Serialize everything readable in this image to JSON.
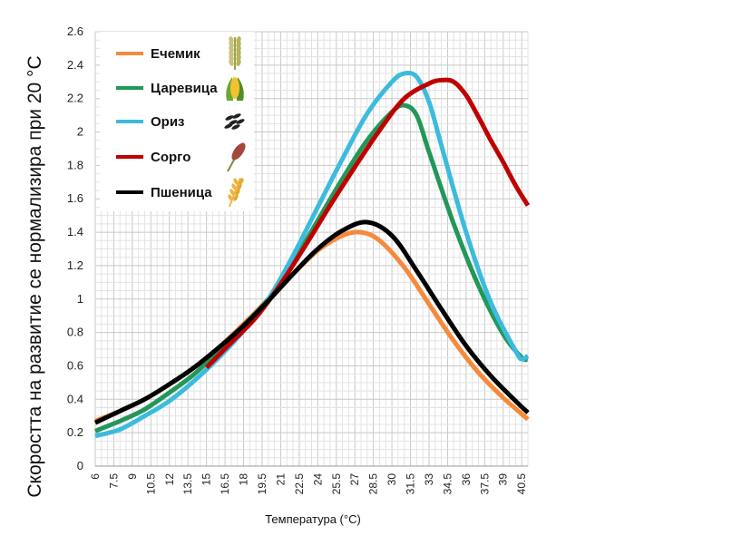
{
  "chart_data": {
    "type": "line",
    "xlabel": "Температура (°C)",
    "ylabel": "Скоростта на развитие се нормализира при 20 °C",
    "xlim": [
      6,
      41
    ],
    "ylim": [
      0,
      2.6
    ],
    "x_ticks": [
      "6",
      "7.5",
      "9",
      "10.5",
      "12",
      "13.5",
      "15",
      "16.5",
      "18",
      "19.5",
      "21",
      "22.5",
      "24",
      "25.5",
      "27",
      "28.5",
      "30",
      "31.5",
      "33",
      "34.5",
      "36",
      "37.5",
      "39",
      "40.5"
    ],
    "y_ticks": [
      "0",
      "0.2",
      "0.4",
      "0.6",
      "0.8",
      "1",
      "1.2",
      "1.4",
      "1.6",
      "1.8",
      "2",
      "2.2",
      "2.4",
      "2.6"
    ],
    "grid": true,
    "legend_position": "top-left",
    "series": [
      {
        "name": "Ечемик",
        "color": "#F58A3C",
        "icon": "barley-icon",
        "points": [
          [
            6,
            0.27
          ],
          [
            8,
            0.33
          ],
          [
            10,
            0.4
          ],
          [
            12,
            0.49
          ],
          [
            14,
            0.59
          ],
          [
            16,
            0.71
          ],
          [
            18,
            0.85
          ],
          [
            20,
            1.0
          ],
          [
            22,
            1.15
          ],
          [
            24,
            1.29
          ],
          [
            26,
            1.38
          ],
          [
            27.5,
            1.4
          ],
          [
            29,
            1.35
          ],
          [
            31,
            1.19
          ],
          [
            33,
            0.97
          ],
          [
            35,
            0.75
          ],
          [
            37,
            0.56
          ],
          [
            39,
            0.41
          ],
          [
            41,
            0.28
          ]
        ]
      },
      {
        "name": "Царевица",
        "color": "#23975A",
        "icon": "corn-icon",
        "points": [
          [
            6,
            0.21
          ],
          [
            8,
            0.27
          ],
          [
            10,
            0.34
          ],
          [
            12,
            0.44
          ],
          [
            14,
            0.55
          ],
          [
            16,
            0.69
          ],
          [
            18,
            0.84
          ],
          [
            20,
            1.0
          ],
          [
            22,
            1.22
          ],
          [
            24,
            1.47
          ],
          [
            26,
            1.72
          ],
          [
            28,
            1.95
          ],
          [
            30,
            2.12
          ],
          [
            31,
            2.16
          ],
          [
            32,
            2.1
          ],
          [
            33,
            1.88
          ],
          [
            35,
            1.45
          ],
          [
            37,
            1.08
          ],
          [
            39,
            0.79
          ],
          [
            40.5,
            0.65
          ],
          [
            41,
            0.64
          ]
        ]
      },
      {
        "name": "Ориз",
        "color": "#3CBBDE",
        "icon": "rice-icon",
        "points": [
          [
            6,
            0.18
          ],
          [
            8,
            0.22
          ],
          [
            10,
            0.3
          ],
          [
            12,
            0.39
          ],
          [
            14,
            0.51
          ],
          [
            16,
            0.65
          ],
          [
            18,
            0.81
          ],
          [
            20,
            1.0
          ],
          [
            22,
            1.26
          ],
          [
            24,
            1.55
          ],
          [
            26,
            1.84
          ],
          [
            28,
            2.11
          ],
          [
            30,
            2.3
          ],
          [
            31,
            2.35
          ],
          [
            32,
            2.33
          ],
          [
            33,
            2.18
          ],
          [
            34,
            1.92
          ],
          [
            36,
            1.4
          ],
          [
            38,
            0.98
          ],
          [
            40,
            0.69
          ],
          [
            40.5,
            0.64
          ],
          [
            41,
            0.66
          ]
        ]
      },
      {
        "name": "Сорго",
        "color": "#C00000",
        "icon": "sorghum-icon",
        "points": [
          [
            15,
            0.59
          ],
          [
            17,
            0.74
          ],
          [
            19,
            0.89
          ],
          [
            21,
            1.09
          ],
          [
            23,
            1.32
          ],
          [
            25,
            1.56
          ],
          [
            27,
            1.79
          ],
          [
            29,
            2.01
          ],
          [
            31,
            2.2
          ],
          [
            33,
            2.29
          ],
          [
            34,
            2.31
          ],
          [
            35,
            2.3
          ],
          [
            36,
            2.22
          ],
          [
            37,
            2.09
          ],
          [
            38,
            1.95
          ],
          [
            39,
            1.82
          ],
          [
            40,
            1.68
          ],
          [
            41,
            1.56
          ]
        ]
      },
      {
        "name": "Пшеница",
        "color": "#000000",
        "icon": "wheat-icon",
        "points": [
          [
            6,
            0.26
          ],
          [
            8,
            0.33
          ],
          [
            10,
            0.4
          ],
          [
            12,
            0.49
          ],
          [
            14,
            0.59
          ],
          [
            16,
            0.71
          ],
          [
            18,
            0.84
          ],
          [
            20,
            0.99
          ],
          [
            22,
            1.15
          ],
          [
            24,
            1.3
          ],
          [
            26,
            1.41
          ],
          [
            28,
            1.46
          ],
          [
            30,
            1.38
          ],
          [
            32,
            1.17
          ],
          [
            34,
            0.94
          ],
          [
            36,
            0.72
          ],
          [
            38,
            0.54
          ],
          [
            40,
            0.39
          ],
          [
            41,
            0.32
          ]
        ]
      }
    ]
  }
}
